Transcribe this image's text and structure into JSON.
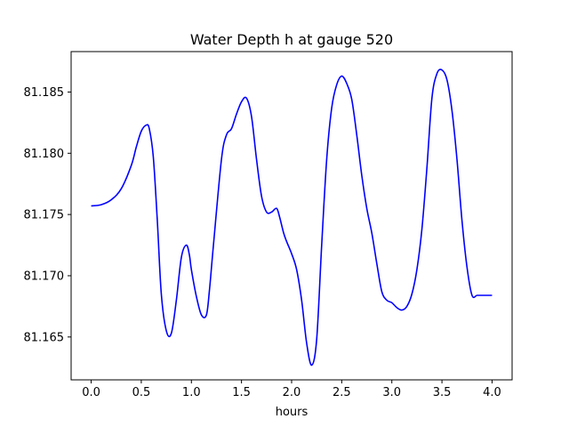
{
  "chart_data": {
    "type": "line",
    "title": "Water Depth h at gauge 520",
    "xlabel": "hours",
    "ylabel": "",
    "xlim": [
      -0.2,
      4.2
    ],
    "ylim": [
      81.1615,
      81.1883
    ],
    "xticks": [
      0.0,
      0.5,
      1.0,
      1.5,
      2.0,
      2.5,
      3.0,
      3.5,
      4.0
    ],
    "xtick_labels": [
      "0.0",
      "0.5",
      "1.0",
      "1.5",
      "2.0",
      "2.5",
      "3.0",
      "3.5",
      "4.0"
    ],
    "yticks": [
      81.165,
      81.17,
      81.175,
      81.18,
      81.185
    ],
    "ytick_labels": [
      "81.165",
      "81.170",
      "81.175",
      "81.180",
      "81.185"
    ],
    "grid": false,
    "legend": "none",
    "series": [
      {
        "color": "#0000ff",
        "x": [
          0.0,
          0.1,
          0.2,
          0.3,
          0.4,
          0.45,
          0.5,
          0.55,
          0.58,
          0.62,
          0.66,
          0.7,
          0.75,
          0.8,
          0.85,
          0.9,
          0.95,
          0.98,
          1.0,
          1.05,
          1.1,
          1.15,
          1.18,
          1.22,
          1.3,
          1.35,
          1.4,
          1.45,
          1.5,
          1.55,
          1.6,
          1.65,
          1.7,
          1.75,
          1.8,
          1.85,
          1.88,
          1.92,
          1.95,
          2.0,
          2.05,
          2.1,
          2.15,
          2.2,
          2.25,
          2.3,
          2.35,
          2.4,
          2.45,
          2.5,
          2.55,
          2.6,
          2.65,
          2.7,
          2.75,
          2.8,
          2.85,
          2.9,
          2.95,
          3.0,
          3.05,
          3.1,
          3.15,
          3.2,
          3.25,
          3.3,
          3.35,
          3.4,
          3.45,
          3.5,
          3.55,
          3.6,
          3.65,
          3.7,
          3.75,
          3.8,
          3.85,
          3.9,
          3.95,
          4.0
        ],
        "y": [
          81.1757,
          81.1758,
          81.1762,
          81.1771,
          81.179,
          81.1805,
          81.1818,
          81.1823,
          81.182,
          81.1797,
          81.1745,
          81.1685,
          81.1655,
          81.1653,
          81.168,
          81.1715,
          81.1725,
          81.1717,
          81.1705,
          81.1683,
          81.1668,
          81.1668,
          81.1688,
          81.1725,
          81.1795,
          81.1815,
          81.182,
          81.1832,
          81.1842,
          81.1845,
          81.183,
          81.1795,
          81.1765,
          81.1752,
          81.1752,
          81.1755,
          81.1748,
          81.1735,
          81.1728,
          81.1718,
          81.1705,
          81.168,
          81.1645,
          81.1627,
          81.1648,
          81.1725,
          81.1795,
          81.1837,
          81.1856,
          81.1863,
          81.1857,
          81.1844,
          81.1815,
          81.1782,
          81.1755,
          81.1735,
          81.171,
          81.1687,
          81.168,
          81.1678,
          81.1674,
          81.1672,
          81.1675,
          81.1685,
          81.1705,
          81.1738,
          81.1788,
          81.1845,
          81.1865,
          81.1868,
          81.186,
          81.1835,
          81.1795,
          81.1745,
          81.1707,
          81.1684,
          81.1684,
          81.1684,
          81.1684,
          81.1684
        ]
      }
    ]
  }
}
